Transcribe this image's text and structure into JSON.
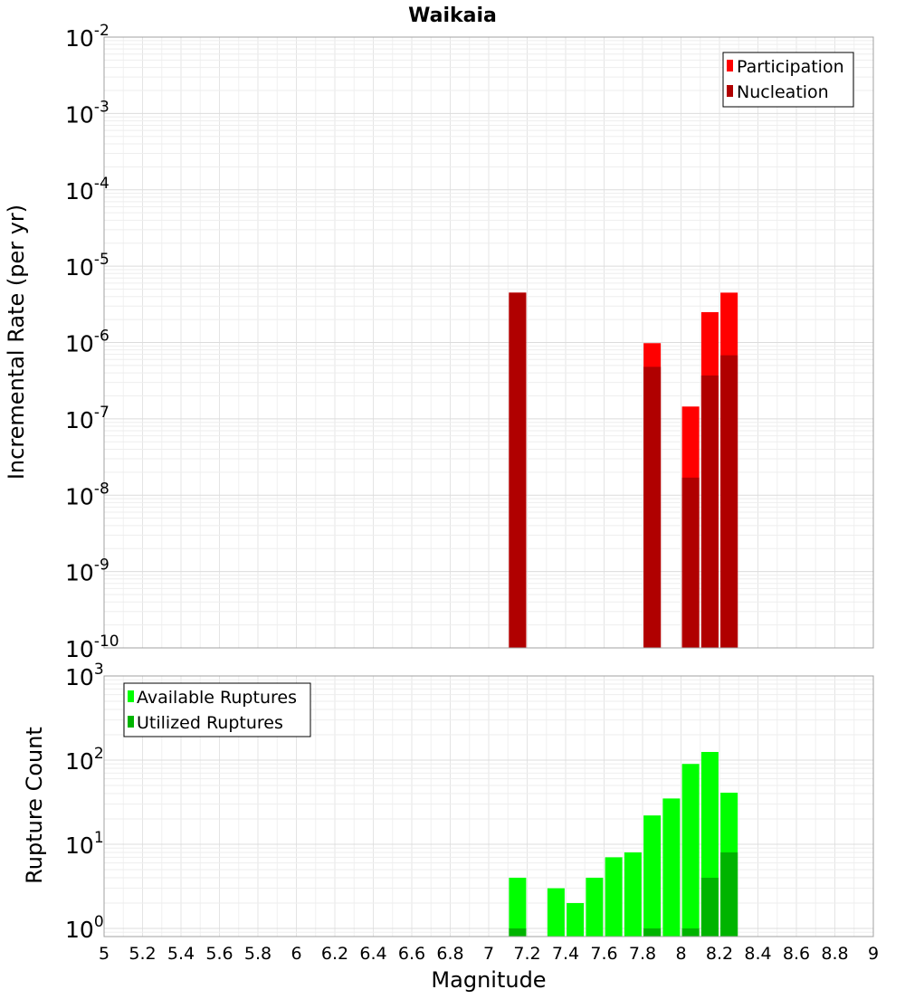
{
  "chart_data": [
    {
      "type": "bar",
      "title": "Waikaia",
      "ylabel": "Incremental Rate (per yr)",
      "xlabel": "Magnitude",
      "xlim": [
        5,
        9
      ],
      "ylim": [
        1e-10,
        0.01
      ],
      "yscale": "log",
      "grid": true,
      "legend_position": "top-right",
      "y_tick_exponents": [
        "-2",
        "-3",
        "-4",
        "-5",
        "-6",
        "-7",
        "-8",
        "-9",
        "-10"
      ],
      "series": [
        {
          "name": "Participation",
          "color": "#ff0000",
          "points": [
            {
              "x": 7.15,
              "y": 4.5e-06
            },
            {
              "x": 7.85,
              "y": 9.8e-07
            },
            {
              "x": 8.05,
              "y": 1.45e-07
            },
            {
              "x": 8.15,
              "y": 2.5e-06
            },
            {
              "x": 8.25,
              "y": 4.5e-06
            }
          ]
        },
        {
          "name": "Nucleation",
          "color": "#b00000",
          "points": [
            {
              "x": 7.15,
              "y": 4.5e-06
            },
            {
              "x": 7.85,
              "y": 4.8e-07
            },
            {
              "x": 8.05,
              "y": 1.7e-08
            },
            {
              "x": 8.15,
              "y": 3.7e-07
            },
            {
              "x": 8.25,
              "y": 6.8e-07
            }
          ]
        }
      ]
    },
    {
      "type": "bar",
      "ylabel": "Rupture Count",
      "xlabel": "Magnitude",
      "xlim": [
        5,
        9
      ],
      "ylim": [
        0.8,
        1000
      ],
      "yscale": "log",
      "grid": true,
      "legend_position": "top-left",
      "y_tick_exponents": [
        "3",
        "2",
        "1",
        "0"
      ],
      "x_ticks": [
        "5",
        "5.2",
        "5.4",
        "5.6",
        "5.8",
        "6",
        "6.2",
        "6.4",
        "6.6",
        "6.8",
        "7",
        "7.2",
        "7.4",
        "7.6",
        "7.8",
        "8",
        "8.2",
        "8.4",
        "8.6",
        "8.8",
        "9"
      ],
      "series": [
        {
          "name": "Available Ruptures",
          "color": "#00ff00",
          "points": [
            {
              "x": 7.15,
              "y": 4
            },
            {
              "x": 7.35,
              "y": 3
            },
            {
              "x": 7.45,
              "y": 2
            },
            {
              "x": 7.55,
              "y": 4
            },
            {
              "x": 7.65,
              "y": 7
            },
            {
              "x": 7.75,
              "y": 8
            },
            {
              "x": 7.85,
              "y": 22
            },
            {
              "x": 7.95,
              "y": 35
            },
            {
              "x": 8.05,
              "y": 90
            },
            {
              "x": 8.15,
              "y": 125
            },
            {
              "x": 8.25,
              "y": 41
            }
          ]
        },
        {
          "name": "Utilized Ruptures",
          "color": "#00b400",
          "points": [
            {
              "x": 7.15,
              "y": 1
            },
            {
              "x": 7.85,
              "y": 1
            },
            {
              "x": 8.05,
              "y": 1
            },
            {
              "x": 8.15,
              "y": 4
            },
            {
              "x": 8.25,
              "y": 8
            }
          ]
        }
      ]
    }
  ]
}
